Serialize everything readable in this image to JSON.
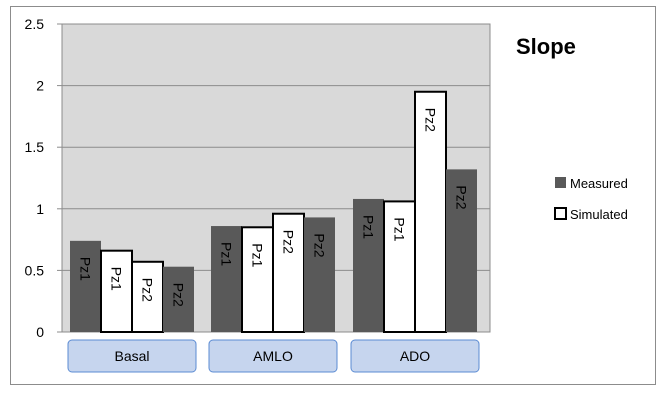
{
  "chart_data": {
    "type": "bar",
    "title": "Slope",
    "groups": [
      "Basal",
      "AMLO",
      "ADO"
    ],
    "bars": [
      {
        "group": "Basal",
        "label": "Pz1",
        "series": "Measured",
        "value": 0.74
      },
      {
        "group": "Basal",
        "label": "Pz1",
        "series": "Simulated",
        "value": 0.66
      },
      {
        "group": "Basal",
        "label": "Pz2",
        "series": "Simulated",
        "value": 0.57
      },
      {
        "group": "Basal",
        "label": "Pz2",
        "series": "Measured",
        "value": 0.53
      },
      {
        "group": "AMLO",
        "label": "Pz1",
        "series": "Measured",
        "value": 0.86
      },
      {
        "group": "AMLO",
        "label": "Pz1",
        "series": "Simulated",
        "value": 0.85
      },
      {
        "group": "AMLO",
        "label": "Pz2",
        "series": "Simulated",
        "value": 0.96
      },
      {
        "group": "AMLO",
        "label": "Pz2",
        "series": "Measured",
        "value": 0.93
      },
      {
        "group": "ADO",
        "label": "Pz1",
        "series": "Measured",
        "value": 1.08
      },
      {
        "group": "ADO",
        "label": "Pz1",
        "series": "Simulated",
        "value": 1.06
      },
      {
        "group": "ADO",
        "label": "Pz2",
        "series": "Simulated",
        "value": 1.95
      },
      {
        "group": "ADO",
        "label": "Pz2",
        "series": "Measured",
        "value": 1.32
      }
    ],
    "y_ticks": [
      "0",
      "0.5",
      "1",
      "1.5",
      "2",
      "2.5"
    ],
    "ylim": [
      0,
      2.5
    ],
    "grid": true,
    "legend": {
      "position": "right",
      "entries": [
        {
          "name": "Measured",
          "color": "#595959"
        },
        {
          "name": "Simulated",
          "color": "#ffffff"
        }
      ]
    },
    "colors": {
      "measured": "#595959",
      "simulated_fill": "#ffffff",
      "simulated_border": "#000000",
      "plot_background": "#d9d9d9",
      "group_label_fill": "#c6d5ee",
      "group_label_border": "#5b8bd3"
    }
  }
}
